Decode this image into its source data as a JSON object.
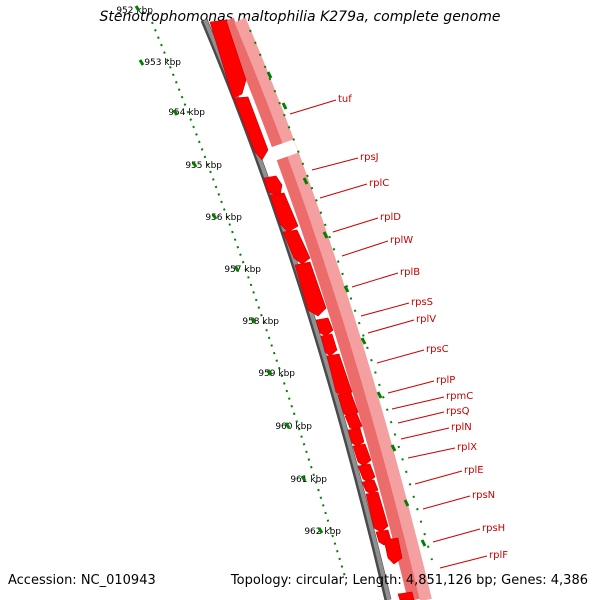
{
  "title": "Stenotrophomonas maltophilia K279a, complete genome",
  "accession": "Accession: NC_010943",
  "topology": "Topology: circular; Length: 4,851,126 bp; Genes: 4,386",
  "ruler": {
    "labels": [
      "952 kbp",
      "953 kbp",
      "954 kbp",
      "955 kbp",
      "956 kbp",
      "957 kbp",
      "958 kbp",
      "959 kbp",
      "960 kbp",
      "961 kbp",
      "962 kbp"
    ]
  },
  "genes": [
    "tuf",
    "rpsJ",
    "rplC",
    "rplD",
    "rplW",
    "rplB",
    "rpsS",
    "rplV",
    "rpsC",
    "rplP",
    "rpmC",
    "rpsQ",
    "rplN",
    "rplX",
    "rplE",
    "rpsN",
    "rpsH",
    "rplF"
  ],
  "colors": {
    "gene": "#ff0000",
    "gene_track": "#f08080",
    "label": "#cc0000",
    "backbone": "#808080",
    "ruler": "#008000"
  }
}
